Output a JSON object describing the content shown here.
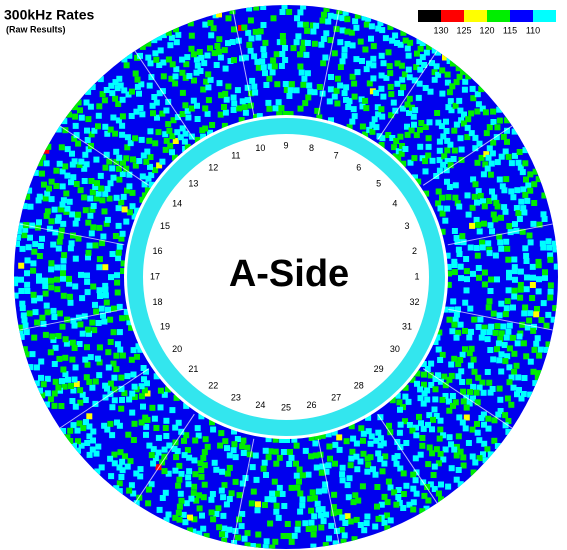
{
  "header": {
    "title": "300kHz Rates",
    "subtitle": "(Raw Results)"
  },
  "legend": {
    "colors": [
      "#000000",
      "#ff0000",
      "#ffff00",
      "#00ee00",
      "#0000ff",
      "#00ffff"
    ],
    "labels": [
      "130",
      "125",
      "120",
      "115",
      "110"
    ]
  },
  "center_label": "A-Side",
  "sectors": [
    "1",
    "2",
    "3",
    "4",
    "5",
    "6",
    "7",
    "8",
    "9",
    "10",
    "11",
    "12",
    "13",
    "14",
    "15",
    "16",
    "17",
    "18",
    "19",
    "20",
    "21",
    "22",
    "23",
    "24",
    "25",
    "26",
    "27",
    "28",
    "29",
    "30",
    "31",
    "32"
  ]
}
